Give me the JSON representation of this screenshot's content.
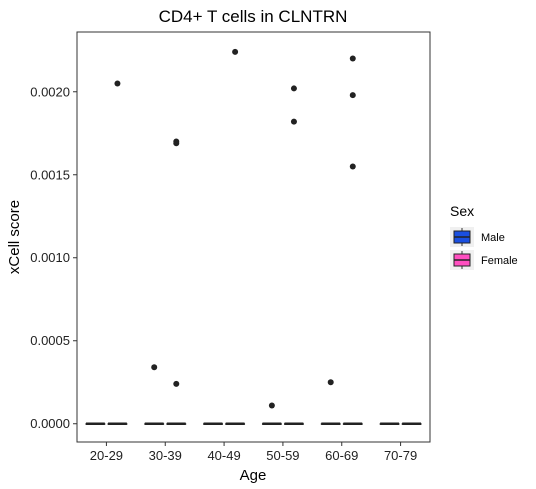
{
  "chart_data": {
    "type": "box",
    "title": "CD4+ T cells in CLNTRN",
    "xlabel": "Age",
    "ylabel": "xCell score",
    "categories": [
      "20-29",
      "30-39",
      "40-49",
      "50-59",
      "60-69",
      "70-79"
    ],
    "ylim": [
      -0.00011,
      0.00236
    ],
    "yticks": [
      0.0,
      0.0005,
      0.001,
      0.0015,
      0.002
    ],
    "ytick_labels": [
      "0.0000",
      "0.0005",
      "0.0010",
      "0.0015",
      "0.0020"
    ],
    "grid": false,
    "legend": {
      "title": "Sex",
      "position": "right"
    },
    "series": [
      {
        "name": "Male",
        "color": "#1a4fe0",
        "boxes": [
          {
            "category": "20-29",
            "min": 0,
            "q1": 0,
            "median": 0,
            "q3": 0,
            "max": 0,
            "outliers": []
          },
          {
            "category": "30-39",
            "min": 0,
            "q1": 0,
            "median": 0,
            "q3": 0,
            "max": 0,
            "outliers": [
              0.00034
            ]
          },
          {
            "category": "40-49",
            "min": 0,
            "q1": 0,
            "median": 0,
            "q3": 0,
            "max": 0,
            "outliers": []
          },
          {
            "category": "50-59",
            "min": 0,
            "q1": 0,
            "median": 0,
            "q3": 0,
            "max": 0,
            "outliers": [
              0.00011
            ]
          },
          {
            "category": "60-69",
            "min": 0,
            "q1": 0,
            "median": 0,
            "q3": 0,
            "max": 0,
            "outliers": [
              0.00025
            ]
          },
          {
            "category": "70-79",
            "min": 0,
            "q1": 0,
            "median": 0,
            "q3": 0,
            "max": 0,
            "outliers": []
          }
        ]
      },
      {
        "name": "Female",
        "color": "#ff4fc0",
        "boxes": [
          {
            "category": "20-29",
            "min": 0,
            "q1": 0,
            "median": 0,
            "q3": 0,
            "max": 0,
            "outliers": [
              0.00205
            ]
          },
          {
            "category": "30-39",
            "min": 0,
            "q1": 0,
            "median": 0,
            "q3": 0,
            "max": 0,
            "outliers": [
              0.00024,
              0.00169,
              0.0017
            ]
          },
          {
            "category": "40-49",
            "min": 0,
            "q1": 0,
            "median": 0,
            "q3": 0,
            "max": 0,
            "outliers": [
              0.00224
            ]
          },
          {
            "category": "50-59",
            "min": 0,
            "q1": 0,
            "median": 0,
            "q3": 0,
            "max": 0,
            "outliers": [
              0.00182,
              0.00202
            ]
          },
          {
            "category": "60-69",
            "min": 0,
            "q1": 0,
            "median": 0,
            "q3": 0,
            "max": 0,
            "outliers": [
              0.00155,
              0.00198,
              0.0022
            ]
          },
          {
            "category": "70-79",
            "min": 0,
            "q1": 0,
            "median": 0,
            "q3": 0,
            "max": 0,
            "outliers": []
          }
        ]
      }
    ]
  }
}
